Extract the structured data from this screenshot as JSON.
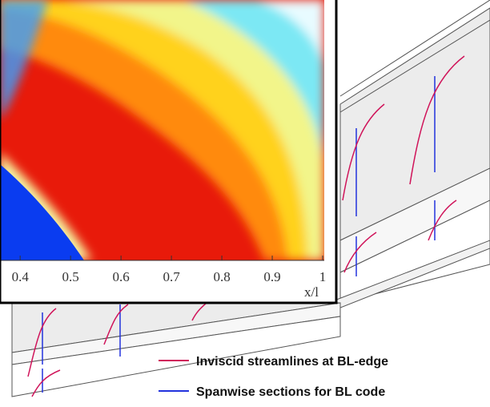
{
  "chart_data": {
    "type": "contour",
    "xlabel": "x/l",
    "xlim": [
      0.36,
      1.0
    ],
    "xticks": [
      0.4,
      0.5,
      0.6,
      0.7,
      0.8,
      0.9,
      1
    ],
    "legend": [
      {
        "name": "Inviscid streamlines at BL-edge",
        "color": "#d0145a"
      },
      {
        "name": "Spanwise sections for BL code",
        "color": "#2233dd"
      }
    ]
  }
}
